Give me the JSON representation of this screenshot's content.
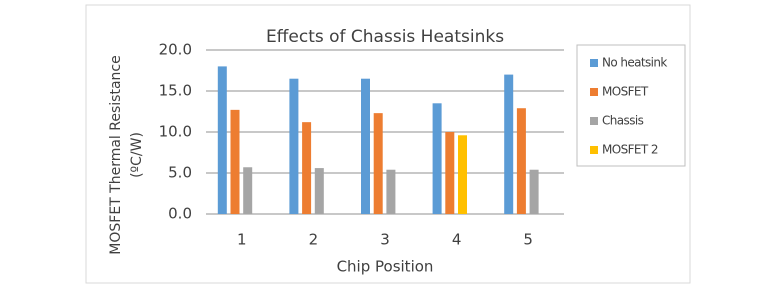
{
  "chart_data": {
    "type": "bar",
    "title": "Effects of Chassis Heatsinks",
    "xlabel": "Chip Position",
    "ylabel": [
      "MOSFET Thermal Resistance",
      "(ºC/W)"
    ],
    "categories": [
      "1",
      "2",
      "3",
      "4",
      "5"
    ],
    "series": [
      {
        "name": "No heatsink",
        "color": "#5b9bd5",
        "values": [
          18.0,
          16.5,
          16.5,
          13.5,
          17.0
        ]
      },
      {
        "name": "MOSFET",
        "color": "#ed7d31",
        "values": [
          12.7,
          11.2,
          12.3,
          10.0,
          12.9
        ]
      },
      {
        "name": "Chassis",
        "color": "#a5a5a5",
        "values": [
          5.7,
          5.6,
          5.4,
          null,
          5.4
        ]
      },
      {
        "name": "MOSFET 2",
        "color": "#ffc000",
        "values": [
          null,
          null,
          null,
          9.6,
          null
        ]
      }
    ],
    "ylim": [
      0,
      20
    ],
    "yticks": [
      {
        "value": 0,
        "label": "0.0"
      },
      {
        "value": 5,
        "label": "5.0"
      },
      {
        "value": 10,
        "label": "10.0"
      },
      {
        "value": 15,
        "label": "15.0"
      },
      {
        "value": 20,
        "label": "20.0"
      }
    ],
    "grid": true,
    "legend": "right"
  }
}
